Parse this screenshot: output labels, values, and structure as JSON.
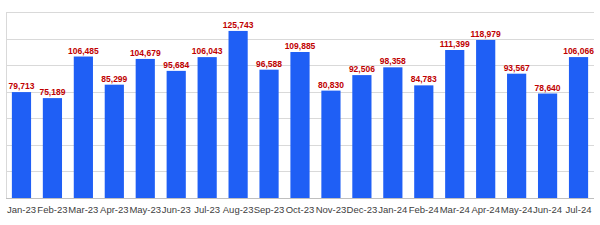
{
  "chart_data": {
    "type": "bar",
    "categories": [
      "Jan-23",
      "Feb-23",
      "Mar-23",
      "Apr-23",
      "May-23",
      "Jun-23",
      "Jul-23",
      "Aug-23",
      "Sep-23",
      "Oct-23",
      "Nov-23",
      "Dec-23",
      "Jan-24",
      "Feb-24",
      "Mar-24",
      "Apr-24",
      "May-24",
      "Jun-24",
      "Jul-24"
    ],
    "values": [
      79713,
      75189,
      106485,
      85299,
      104679,
      95684,
      106043,
      125743,
      96588,
      109885,
      80830,
      92506,
      98358,
      84783,
      111399,
      118979,
      93567,
      78640,
      106066
    ],
    "value_labels": [
      "79,713",
      "75,189",
      "106,485",
      "85,299",
      "104,679",
      "95,684",
      "106,043",
      "125,743",
      "96,588",
      "109,885",
      "80,830",
      "92,506",
      "98,358",
      "84,783",
      "111,399",
      "118,979",
      "93,567",
      "78,640",
      "106,066"
    ],
    "color": "#1f5ff5",
    "ylim": [
      0,
      140000
    ],
    "yticks": [
      0,
      20000,
      40000,
      60000,
      80000,
      100000,
      120000,
      140000
    ],
    "grid": true,
    "data_labels": true,
    "tick_labels": "x"
  }
}
